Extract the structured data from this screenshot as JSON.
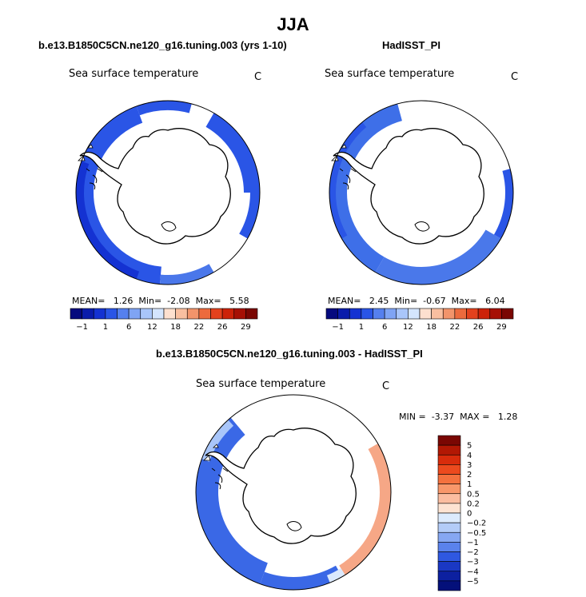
{
  "figure": {
    "title": "JJA",
    "panels": [
      {
        "id": "model",
        "subtitle": "b.e13.B1850C5CN.ne120_g16.tuning.003 (yrs 1-10)",
        "variable": "Sea surface temperature",
        "units": "C",
        "stats": {
          "mean_label": "MEAN=",
          "mean": "1.26",
          "min_label": "Min=",
          "min": "-2.08",
          "max_label": "Max=",
          "max": "5.58"
        }
      },
      {
        "id": "obs",
        "subtitle": "HadISST_PI",
        "variable": "Sea surface temperature",
        "units": "C",
        "stats": {
          "mean_label": "MEAN=",
          "mean": "2.45",
          "min_label": "Min=",
          "min": "-0.67",
          "max_label": "Max=",
          "max": "6.04"
        }
      },
      {
        "id": "diff",
        "subtitle": "b.e13.B1850C5CN.ne120_g16.tuning.003 - HadISST_PI",
        "variable": "Sea surface temperature",
        "units": "C",
        "stats": {
          "min_label": "MIN =",
          "min": "-3.37",
          "max_label": "MAX =",
          "max": "1.28"
        }
      }
    ]
  },
  "chart_data": [
    {
      "type": "heatmap",
      "projection": "south polar stereographic",
      "title": "b.e13.B1850C5CN.ne120_g16.tuning.003 (yrs 1-10)",
      "variable": "Sea surface temperature",
      "units": "C",
      "mean": 1.26,
      "min": -2.08,
      "max": 5.58,
      "colorbar": {
        "levels": [
          -1,
          1,
          6,
          12,
          18,
          22,
          26,
          29
        ],
        "colors": [
          "#050a7e",
          "#0a1cab",
          "#1432d2",
          "#2a55e6",
          "#5580ee",
          "#7fa4f4",
          "#a9c6fa",
          "#d4e5fd",
          "#fde0cf",
          "#f9bfa0",
          "#f2946b",
          "#ec6a3d",
          "#e3411d",
          "#cc2209",
          "#a61005",
          "#7a0703"
        ]
      }
    },
    {
      "type": "heatmap",
      "projection": "south polar stereographic",
      "title": "HadISST_PI",
      "variable": "Sea surface temperature",
      "units": "C",
      "mean": 2.45,
      "min": -0.67,
      "max": 6.04,
      "colorbar": {
        "levels": [
          -1,
          1,
          6,
          12,
          18,
          22,
          26,
          29
        ],
        "colors": [
          "#050a7e",
          "#0a1cab",
          "#1432d2",
          "#2a55e6",
          "#5580ee",
          "#7fa4f4",
          "#a9c6fa",
          "#d4e5fd",
          "#fde0cf",
          "#f9bfa0",
          "#f2946b",
          "#ec6a3d",
          "#e3411d",
          "#cc2209",
          "#a61005",
          "#7a0703"
        ]
      }
    },
    {
      "type": "heatmap",
      "projection": "south polar stereographic",
      "title": "b.e13.B1850C5CN.ne120_g16.tuning.003 - HadISST_PI",
      "variable": "Sea surface temperature",
      "units": "C",
      "min": -3.37,
      "max": 1.28,
      "colorbar": {
        "tick_labels": [
          "5",
          "4",
          "3",
          "2",
          "1",
          "0.5",
          "0.2",
          "0",
          "−0.2",
          "−0.5",
          "−1",
          "−2",
          "−3",
          "−4",
          "−5"
        ],
        "colors": [
          "#7a0703",
          "#b21804",
          "#d82c0c",
          "#ec4a1e",
          "#f4713e",
          "#f8976a",
          "#fbbda0",
          "#fde3d2",
          "#dcebfd",
          "#b3ccf8",
          "#86a7f2",
          "#5a82ec",
          "#2f58e1",
          "#1a38c4",
          "#0c20a0",
          "#04107a"
        ]
      }
    }
  ]
}
